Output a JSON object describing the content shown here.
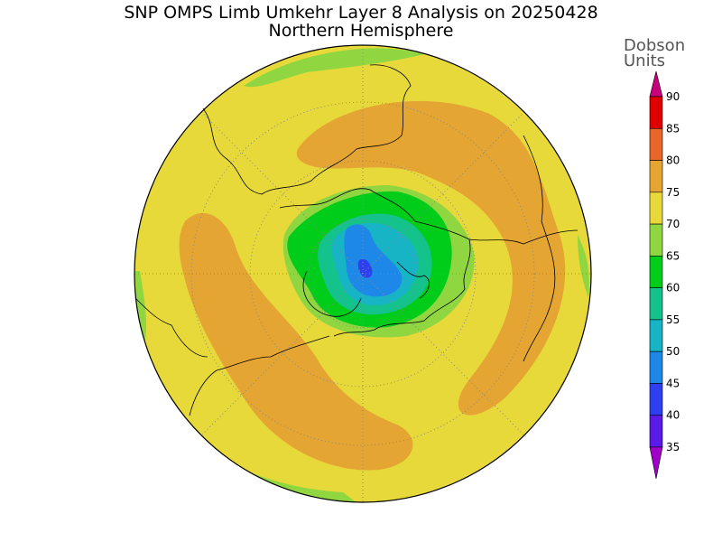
{
  "title": "SNP OMPS Limb Umkehr Layer 8 Analysis on 20250428",
  "subtitle": "Northern Hemisphere",
  "legend": {
    "title_line1": "Dobson",
    "title_line2": "Units",
    "levels": [
      {
        "value": "35",
        "color": "#7b00d6"
      },
      {
        "value": "40",
        "color": "#5a1be8"
      },
      {
        "value": "45",
        "color": "#2d3ff0"
      },
      {
        "value": "50",
        "color": "#1e88e8"
      },
      {
        "value": "55",
        "color": "#17b4c6"
      },
      {
        "value": "60",
        "color": "#14c28c"
      },
      {
        "value": "65",
        "color": "#00cc1a"
      },
      {
        "value": "70",
        "color": "#8fd640"
      },
      {
        "value": "75",
        "color": "#e8d93a"
      },
      {
        "value": "80",
        "color": "#e5a533"
      },
      {
        "value": "85",
        "color": "#e8662a"
      },
      {
        "value": "90",
        "color": "#e00000"
      }
    ],
    "top_cap_color": "#c8007a",
    "bottom_cap_color": "#a000c8"
  },
  "map": {
    "projection": "north polar stereographic",
    "hemisphere": "Northern Hemisphere",
    "background_color": "#e8d93a"
  }
}
